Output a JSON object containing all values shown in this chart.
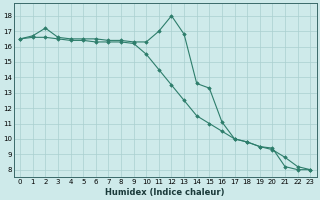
{
  "xlabel": "Humidex (Indice chaleur)",
  "x_ticks": [
    0,
    1,
    2,
    3,
    4,
    5,
    6,
    7,
    8,
    9,
    10,
    11,
    12,
    13,
    14,
    15,
    16,
    17,
    18,
    19,
    20,
    21,
    22,
    23
  ],
  "ylim": [
    7.5,
    18.8
  ],
  "yticks": [
    8,
    9,
    10,
    11,
    12,
    13,
    14,
    15,
    16,
    17,
    18
  ],
  "line1_x": [
    0,
    1,
    2,
    3,
    4,
    5,
    6,
    7,
    8,
    9,
    10,
    11,
    12,
    13,
    14,
    15,
    16,
    17,
    18,
    19,
    20,
    21,
    22,
    23
  ],
  "line1_y": [
    16.5,
    16.7,
    17.2,
    16.6,
    16.5,
    16.5,
    16.5,
    16.4,
    16.4,
    16.3,
    16.3,
    17.0,
    18.0,
    16.8,
    13.6,
    13.3,
    11.1,
    10.0,
    9.8,
    9.5,
    9.4,
    8.2,
    8.0,
    8.0
  ],
  "line2_x": [
    0,
    1,
    2,
    3,
    4,
    5,
    6,
    7,
    8,
    9,
    10,
    11,
    12,
    13,
    14,
    15,
    16,
    17,
    18,
    19,
    20,
    21,
    22,
    23
  ],
  "line2_y": [
    16.5,
    16.6,
    16.6,
    16.5,
    16.4,
    16.4,
    16.3,
    16.3,
    16.3,
    16.2,
    15.5,
    14.5,
    13.5,
    12.5,
    11.5,
    11.0,
    10.5,
    10.0,
    9.8,
    9.5,
    9.3,
    8.8,
    8.2,
    8.0
  ],
  "line_color": "#2d7d6b",
  "bg_color": "#ceeaea",
  "grid_color": "#aacfcf",
  "marker": "D",
  "marker_size": 1.8,
  "linewidth": 0.8,
  "tick_fontsize": 5.0,
  "xlabel_fontsize": 6.0
}
